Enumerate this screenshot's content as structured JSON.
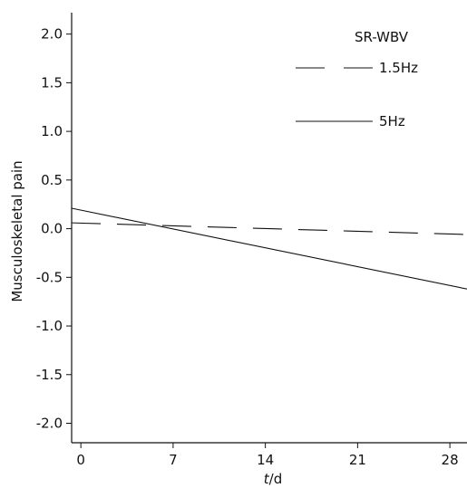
{
  "chart_data": {
    "type": "line",
    "title": "",
    "annotation": "SR-WBV",
    "xlabel_italic": "t",
    "xlabel_rest": "/d",
    "ylabel": "Musculoskeletal pain",
    "xlim": [
      -0.7,
      29.3
    ],
    "ylim": [
      -2.2,
      2.22
    ],
    "xticks": [
      0,
      7,
      14,
      21,
      28
    ],
    "yticks": [
      -2.0,
      -1.5,
      -1.0,
      -0.5,
      0.0,
      0.5,
      1.0,
      1.5,
      2.0
    ],
    "ytick_labels": [
      "-2.0",
      "-1.5",
      "-1.0",
      "-0.5",
      "0.0",
      "0.5",
      "1.0",
      "1.5",
      "2.0"
    ],
    "legend_position": "top-right",
    "series": [
      {
        "name": "1.5Hz",
        "style": "dashed",
        "color": "#111111",
        "x": [
          -0.7,
          29.3
        ],
        "y": [
          0.06,
          -0.06
        ]
      },
      {
        "name": "5Hz",
        "style": "solid",
        "color": "#111111",
        "x": [
          -0.7,
          29.3
        ],
        "y": [
          0.21,
          -0.62
        ]
      }
    ]
  }
}
